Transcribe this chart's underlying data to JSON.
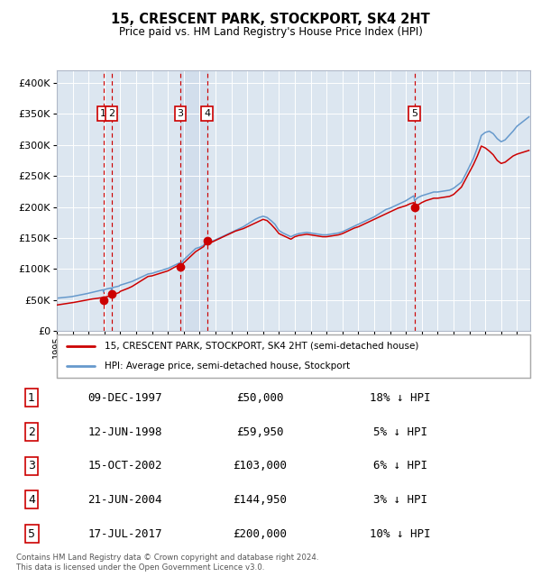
{
  "title": "15, CRESCENT PARK, STOCKPORT, SK4 2HT",
  "subtitle": "Price paid vs. HM Land Registry's House Price Index (HPI)",
  "plot_bg_color": "#dce6f0",
  "grid_color": "#ffffff",
  "ylim": [
    0,
    420000
  ],
  "yticks": [
    0,
    50000,
    100000,
    150000,
    200000,
    250000,
    300000,
    350000,
    400000
  ],
  "ytick_labels": [
    "£0",
    "£50K",
    "£100K",
    "£150K",
    "£200K",
    "£250K",
    "£300K",
    "£350K",
    "£400K"
  ],
  "sale_dates_num": [
    1997.94,
    1998.45,
    2002.79,
    2004.47,
    2017.54
  ],
  "sale_prices": [
    50000,
    59950,
    103000,
    144950,
    200000
  ],
  "sale_labels": [
    "1",
    "2",
    "3",
    "4",
    "5"
  ],
  "sale_color": "#cc0000",
  "hpi_color": "#6699cc",
  "legend_sale_label": "15, CRESCENT PARK, STOCKPORT, SK4 2HT (semi-detached house)",
  "legend_hpi_label": "HPI: Average price, semi-detached house, Stockport",
  "table_rows": [
    [
      "1",
      "09-DEC-1997",
      "£50,000",
      "18% ↓ HPI"
    ],
    [
      "2",
      "12-JUN-1998",
      "£59,950",
      "5% ↓ HPI"
    ],
    [
      "3",
      "15-OCT-2002",
      "£103,000",
      "6% ↓ HPI"
    ],
    [
      "4",
      "21-JUN-2004",
      "£144,950",
      "3% ↓ HPI"
    ],
    [
      "5",
      "17-JUL-2017",
      "£200,000",
      "10% ↓ HPI"
    ]
  ],
  "footer": "Contains HM Land Registry data © Crown copyright and database right 2024.\nThis data is licensed under the Open Government Licence v3.0.",
  "xmin": 1995.0,
  "xmax": 2024.83,
  "hpi_years": [
    1995.0,
    1995.08,
    1995.17,
    1995.25,
    1995.33,
    1995.42,
    1995.5,
    1995.58,
    1995.67,
    1995.75,
    1995.83,
    1995.92,
    1996.0,
    1996.08,
    1996.17,
    1996.25,
    1996.33,
    1996.42,
    1996.5,
    1996.58,
    1996.67,
    1996.75,
    1996.83,
    1996.92,
    1997.0,
    1997.08,
    1997.17,
    1997.25,
    1997.33,
    1997.42,
    1997.5,
    1997.58,
    1997.67,
    1997.75,
    1997.83,
    1997.92,
    1997.94,
    1998.0,
    1998.08,
    1998.17,
    1998.25,
    1998.33,
    1998.42,
    1998.45,
    1998.5,
    1998.58,
    1998.67,
    1998.75,
    1998.83,
    1998.92,
    1999.0,
    1999.25,
    1999.5,
    1999.75,
    2000.0,
    2000.25,
    2000.5,
    2000.75,
    2001.0,
    2001.25,
    2001.5,
    2001.75,
    2002.0,
    2002.25,
    2002.5,
    2002.75,
    2002.79,
    2003.0,
    2003.25,
    2003.5,
    2003.75,
    2004.0,
    2004.25,
    2004.47,
    2004.5,
    2004.75,
    2005.0,
    2005.25,
    2005.5,
    2005.75,
    2006.0,
    2006.25,
    2006.5,
    2006.75,
    2007.0,
    2007.25,
    2007.5,
    2007.75,
    2008.0,
    2008.25,
    2008.5,
    2008.75,
    2009.0,
    2009.25,
    2009.5,
    2009.75,
    2010.0,
    2010.25,
    2010.5,
    2010.75,
    2011.0,
    2011.25,
    2011.5,
    2011.75,
    2012.0,
    2012.25,
    2012.5,
    2012.75,
    2013.0,
    2013.25,
    2013.5,
    2013.75,
    2014.0,
    2014.25,
    2014.5,
    2014.75,
    2015.0,
    2015.25,
    2015.5,
    2015.75,
    2016.0,
    2016.25,
    2016.5,
    2016.75,
    2017.0,
    2017.25,
    2017.5,
    2017.54,
    2017.75,
    2018.0,
    2018.25,
    2018.5,
    2018.75,
    2019.0,
    2019.25,
    2019.5,
    2019.75,
    2020.0,
    2020.25,
    2020.5,
    2020.75,
    2021.0,
    2021.25,
    2021.5,
    2021.75,
    2022.0,
    2022.25,
    2022.5,
    2022.75,
    2023.0,
    2023.25,
    2023.5,
    2023.75,
    2024.0,
    2024.25,
    2024.5,
    2024.75
  ],
  "hpi_vals": [
    53000,
    53200,
    53400,
    53600,
    53800,
    54000,
    54200,
    54400,
    54600,
    54800,
    55000,
    55400,
    55800,
    56200,
    56600,
    57000,
    57400,
    57800,
    58200,
    58600,
    59000,
    59500,
    60000,
    60500,
    61000,
    61500,
    62000,
    62500,
    63000,
    63500,
    64000,
    64500,
    65000,
    65500,
    66000,
    66500,
    63000,
    67000,
    67500,
    68000,
    68500,
    69000,
    69500,
    63500,
    70000,
    70500,
    71000,
    71500,
    72000,
    72500,
    74000,
    76000,
    78000,
    80000,
    83000,
    86000,
    89000,
    92000,
    93000,
    95000,
    97000,
    99000,
    101000,
    104000,
    107000,
    110000,
    107000,
    115000,
    121000,
    127000,
    133000,
    135000,
    138000,
    149000,
    141000,
    144000,
    147000,
    150000,
    153000,
    156000,
    159000,
    162000,
    165000,
    168000,
    172000,
    176000,
    180000,
    183000,
    185000,
    183000,
    178000,
    172000,
    162000,
    158000,
    155000,
    152000,
    155000,
    157000,
    158000,
    159000,
    158000,
    157000,
    156000,
    155000,
    155000,
    156000,
    157000,
    158000,
    160000,
    163000,
    166000,
    169000,
    172000,
    175000,
    178000,
    181000,
    184000,
    188000,
    192000,
    196000,
    198000,
    201000,
    204000,
    207000,
    210000,
    214000,
    218000,
    210000,
    215000,
    218000,
    220000,
    222000,
    224000,
    224000,
    225000,
    226000,
    227000,
    230000,
    235000,
    240000,
    252000,
    265000,
    278000,
    295000,
    315000,
    320000,
    322000,
    318000,
    310000,
    305000,
    308000,
    315000,
    322000,
    330000,
    335000,
    340000,
    345000
  ],
  "red_vals": [
    42000,
    42300,
    42600,
    42900,
    43200,
    43500,
    43800,
    44100,
    44400,
    44700,
    45000,
    45400,
    45800,
    46200,
    46600,
    47000,
    47400,
    47800,
    48200,
    48600,
    49000,
    49400,
    49800,
    50200,
    50600,
    51000,
    51400,
    51800,
    52000,
    52300,
    52600,
    52900,
    53200,
    53500,
    53800,
    54000,
    50000,
    54500,
    55000,
    55500,
    56000,
    56500,
    57000,
    59950,
    58000,
    58800,
    59600,
    60400,
    61200,
    62000,
    64000,
    66500,
    69000,
    72000,
    76000,
    80000,
    84000,
    88000,
    89000,
    91000,
    93000,
    95000,
    97000,
    100500,
    104000,
    107000,
    103000,
    110000,
    116000,
    122000,
    128000,
    132000,
    136000,
    144950,
    140000,
    143000,
    146000,
    149000,
    152000,
    155000,
    158000,
    161000,
    163000,
    165000,
    168000,
    171000,
    174000,
    177000,
    180000,
    178000,
    172000,
    165000,
    157000,
    154000,
    151000,
    148000,
    152000,
    154000,
    155000,
    156000,
    155000,
    154000,
    153000,
    152000,
    152000,
    153000,
    154000,
    155000,
    157000,
    160000,
    163000,
    166000,
    168000,
    171000,
    174000,
    177000,
    180000,
    183000,
    186000,
    189000,
    192000,
    195000,
    198000,
    200000,
    202000,
    205000,
    207000,
    200000,
    203000,
    207000,
    210000,
    212000,
    214000,
    214000,
    215000,
    216000,
    217000,
    220000,
    226000,
    232000,
    244000,
    256000,
    268000,
    282000,
    298000,
    295000,
    290000,
    284000,
    275000,
    270000,
    272000,
    277000,
    282000,
    285000,
    287000,
    289000,
    291000
  ]
}
